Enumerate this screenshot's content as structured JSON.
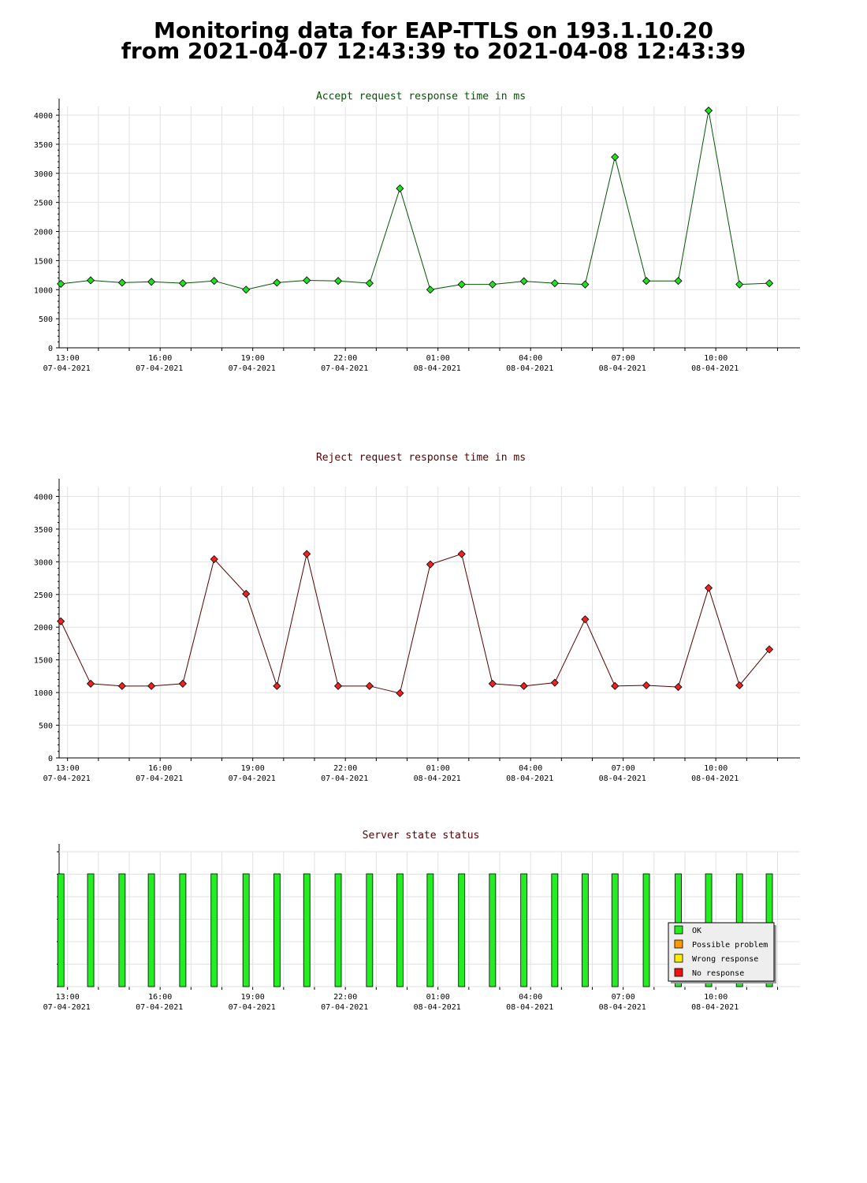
{
  "page": {
    "title_line1": "Monitoring data for EAP-TTLS on 193.1.10.20",
    "title_line2": "from 2021-04-07 12:43:39 to 2021-04-08 12:43:39"
  },
  "x_ticks": [
    {
      "time": "13:00",
      "date": "07-04-2021"
    },
    {
      "time": "16:00",
      "date": "07-04-2021"
    },
    {
      "time": "19:00",
      "date": "07-04-2021"
    },
    {
      "time": "22:00",
      "date": "07-04-2021"
    },
    {
      "time": "01:00",
      "date": "08-04-2021"
    },
    {
      "time": "04:00",
      "date": "08-04-2021"
    },
    {
      "time": "07:00",
      "date": "08-04-2021"
    },
    {
      "time": "10:00",
      "date": "08-04-2021"
    }
  ],
  "chart_data": [
    {
      "type": "line",
      "title": "Accept request response time in ms",
      "title_color": "#005500",
      "marker_color": "#22dd22",
      "line_color": "#005500",
      "x": [
        "12:47",
        "13:45",
        "14:46",
        "15:43",
        "16:44",
        "17:45",
        "18:47",
        "19:47",
        "20:45",
        "21:46",
        "22:47",
        "23:46",
        "00:45",
        "01:46",
        "02:46",
        "03:47",
        "04:47",
        "05:46",
        "06:44",
        "07:45",
        "08:47",
        "09:46",
        "10:46",
        "11:44"
      ],
      "values": [
        1100,
        1160,
        1120,
        1135,
        1110,
        1150,
        1000,
        1120,
        1160,
        1150,
        1110,
        2740,
        1000,
        1090,
        1090,
        1145,
        1110,
        1090,
        3280,
        1150,
        1150,
        4080,
        1090,
        1110
      ],
      "ylim": [
        0,
        4150
      ],
      "y_ticks": [
        0,
        500,
        1000,
        1500,
        2000,
        2500,
        3000,
        3500,
        4000
      ],
      "grid": true
    },
    {
      "type": "line",
      "title": "Reject request response time in ms",
      "title_color": "#550000",
      "marker_color": "#ee2222",
      "line_color": "#550000",
      "x": [
        "12:47",
        "13:45",
        "14:46",
        "15:43",
        "16:44",
        "17:45",
        "18:47",
        "19:47",
        "20:45",
        "21:46",
        "22:47",
        "23:46",
        "00:45",
        "01:46",
        "02:46",
        "03:47",
        "04:47",
        "05:46",
        "06:44",
        "07:45",
        "08:47",
        "09:46",
        "10:46",
        "11:44"
      ],
      "values": [
        2090,
        1135,
        1100,
        1100,
        1135,
        3040,
        2510,
        1100,
        3120,
        1100,
        1100,
        990,
        2960,
        3120,
        1135,
        1100,
        1150,
        2120,
        1100,
        1110,
        1085,
        2600,
        1110,
        1660
      ],
      "ylim": [
        0,
        4150
      ],
      "y_ticks": [
        0,
        500,
        1000,
        1500,
        2000,
        2500,
        3000,
        3500,
        4000
      ],
      "grid": true
    },
    {
      "type": "bar",
      "title": "Server state status",
      "title_color": "#550000",
      "x": [
        "12:47",
        "13:45",
        "14:46",
        "15:43",
        "16:44",
        "17:45",
        "18:47",
        "19:47",
        "20:45",
        "21:46",
        "22:47",
        "23:46",
        "00:45",
        "01:46",
        "02:46",
        "03:47",
        "04:47",
        "05:46",
        "06:44",
        "07:45",
        "08:47",
        "09:46",
        "10:46",
        "11:44"
      ],
      "status": [
        "OK",
        "OK",
        "OK",
        "OK",
        "OK",
        "OK",
        "OK",
        "OK",
        "OK",
        "OK",
        "OK",
        "OK",
        "OK",
        "OK",
        "OK",
        "OK",
        "OK",
        "OK",
        "OK",
        "OK",
        "OK",
        "OK",
        "OK",
        "OK"
      ],
      "legend": [
        {
          "label": "OK",
          "color": "#22ee22"
        },
        {
          "label": "Possible problem",
          "color": "#ff9900"
        },
        {
          "label": "Wrong response",
          "color": "#ffee00"
        },
        {
          "label": "No response",
          "color": "#ee1111"
        }
      ],
      "legend_position": "bottom-right",
      "grid": true
    }
  ]
}
